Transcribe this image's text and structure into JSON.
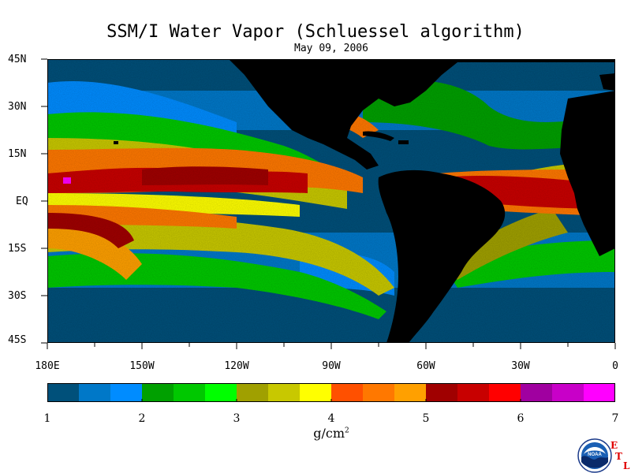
{
  "title": "SSM/I Water Vapor (Schluessel algorithm)",
  "date": "May 09, 2006",
  "latitude_labels": [
    "45N",
    "30N",
    "15N",
    "EQ",
    "15S",
    "30S",
    "45S"
  ],
  "longitude_labels": [
    "180E",
    "150W",
    "120W",
    "90W",
    "60W",
    "30W",
    "0"
  ],
  "colorbar": {
    "tick_labels": [
      "1",
      "2",
      "3",
      "4",
      "5",
      "6",
      "7"
    ],
    "unit_base": "g/cm",
    "unit_exp": "2",
    "min": 1,
    "max": 7,
    "colors": [
      "#00507a",
      "#0078c8",
      "#008cff",
      "#00a000",
      "#00c800",
      "#00ff00",
      "#a0a000",
      "#c8c800",
      "#ffff00",
      "#ff5000",
      "#ff7800",
      "#ffa000",
      "#a00000",
      "#c80000",
      "#ff0000",
      "#a000a0",
      "#c800c8",
      "#ff00ff"
    ]
  },
  "logos": {
    "noaa_text": "NOAA",
    "etl_letters": [
      "E",
      "T",
      "L"
    ]
  }
}
